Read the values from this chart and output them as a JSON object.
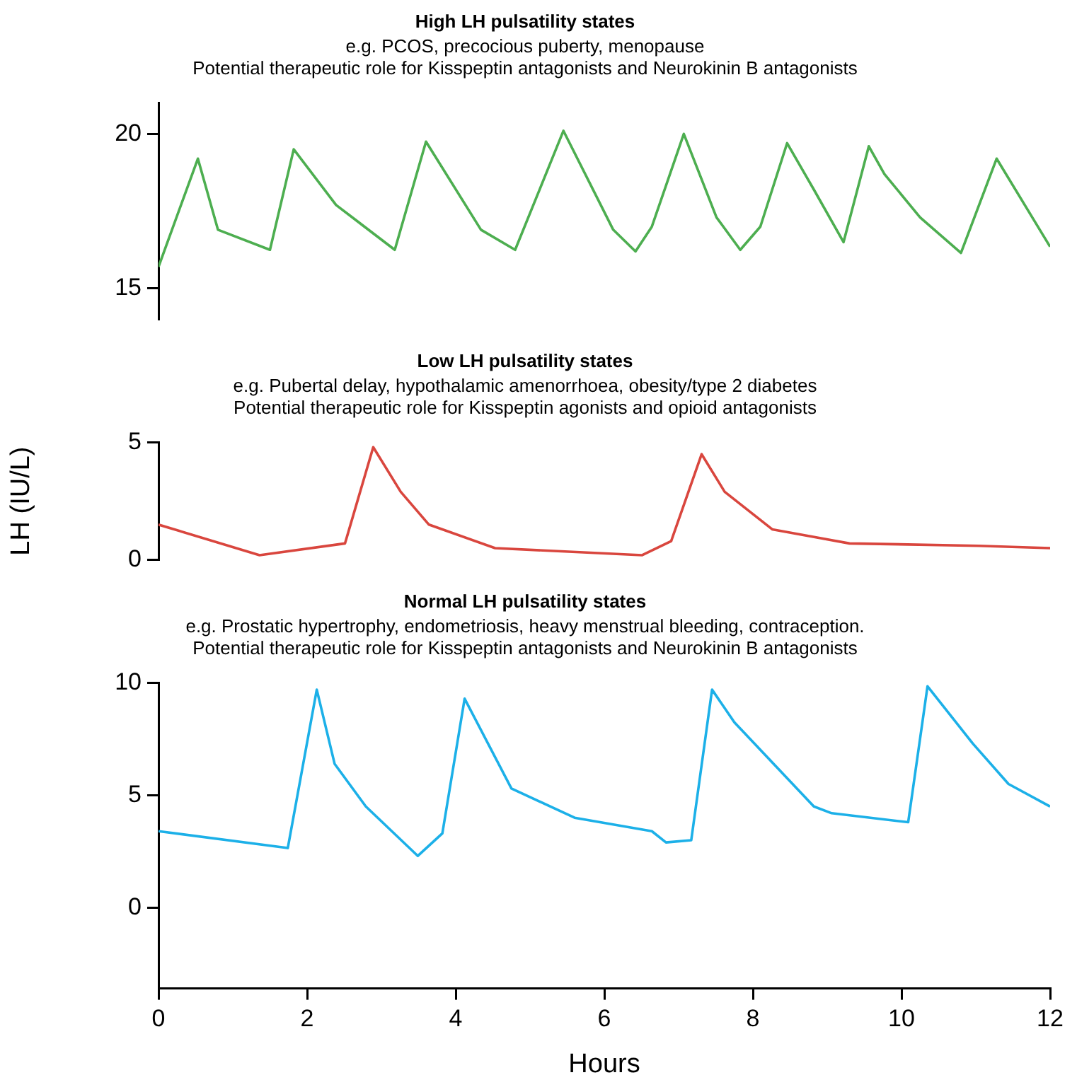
{
  "chart_data": [
    {
      "type": "line",
      "title": "High LH pulsatility states",
      "subtitle": "e.g. PCOS, precocious puberty, menopause\nPotential therapeutic role for Kisspeptin antagonists and Neurokinin B antagonists",
      "color": "#4dae50",
      "x": [
        0,
        0.53,
        0.8,
        1.5,
        1.82,
        2.39,
        3.18,
        3.6,
        4.34,
        4.8,
        5.45,
        6.12,
        6.42,
        6.64,
        7.07,
        7.51,
        7.83,
        8.1,
        8.46,
        8.82,
        9.22,
        9.56,
        9.77,
        10.25,
        10.8,
        11.28,
        12
      ],
      "values": [
        15.7,
        19.2,
        16.9,
        16.25,
        19.5,
        17.7,
        16.25,
        19.75,
        16.9,
        16.25,
        20.1,
        16.9,
        16.2,
        17.0,
        20.0,
        17.3,
        16.25,
        17.0,
        19.7,
        18.2,
        16.5,
        19.6,
        18.7,
        17.3,
        16.15,
        19.2,
        16.35
      ],
      "xlim": [
        0,
        12
      ],
      "ylim": [
        14,
        21
      ],
      "yticks": [
        15,
        20
      ],
      "tick_labels": "y"
    },
    {
      "type": "line",
      "title": "Low LH pulsatility states",
      "subtitle": "e.g. Pubertal delay, hypothalamic amenorrhoea, obesity/type 2 diabetes\nPotential therapeutic role for Kisspeptin agonists and opioid antagonists",
      "color": "#d9463e",
      "ylabel": "LH (IU/L)",
      "x": [
        0,
        1.36,
        2.51,
        2.89,
        3.26,
        3.64,
        4.53,
        6.51,
        6.9,
        7.31,
        7.62,
        8.26,
        9.3,
        11.04,
        12
      ],
      "values": [
        1.5,
        0.2,
        0.7,
        4.8,
        2.9,
        1.5,
        0.5,
        0.2,
        0.8,
        4.5,
        2.9,
        1.3,
        0.7,
        0.6,
        0.5
      ],
      "xlim": [
        0,
        12
      ],
      "ylim": [
        0,
        5
      ],
      "yticks": [
        0,
        5
      ],
      "tick_labels": "y"
    },
    {
      "type": "line",
      "title": "Normal LH pulsatility states",
      "subtitle": "e.g. Prostatic hypertrophy, endometriosis, heavy menstrual bleeding, contraception.\nPotential therapeutic role for Kisspeptin antagonists and Neurokinin B antagonists",
      "color": "#1cb0e8",
      "xlabel": "Hours",
      "x": [
        0,
        1.74,
        2.13,
        2.37,
        2.79,
        3.49,
        3.82,
        4.12,
        4.75,
        5.6,
        6.64,
        6.83,
        7.17,
        7.45,
        7.75,
        8.82,
        9.06,
        10.09,
        10.35,
        10.96,
        11.44,
        12
      ],
      "values": [
        3.4,
        2.65,
        9.7,
        6.4,
        4.5,
        2.3,
        3.3,
        9.3,
        5.3,
        4.0,
        3.4,
        2.9,
        3.0,
        9.7,
        8.25,
        4.5,
        4.2,
        3.8,
        9.85,
        7.3,
        5.5,
        4.5
      ],
      "xlim": [
        0,
        12
      ],
      "ylim": [
        -3.6,
        10
      ],
      "yticks": [
        0,
        5,
        10
      ],
      "xticks": [
        0,
        2,
        4,
        6,
        8,
        10,
        12
      ]
    }
  ]
}
